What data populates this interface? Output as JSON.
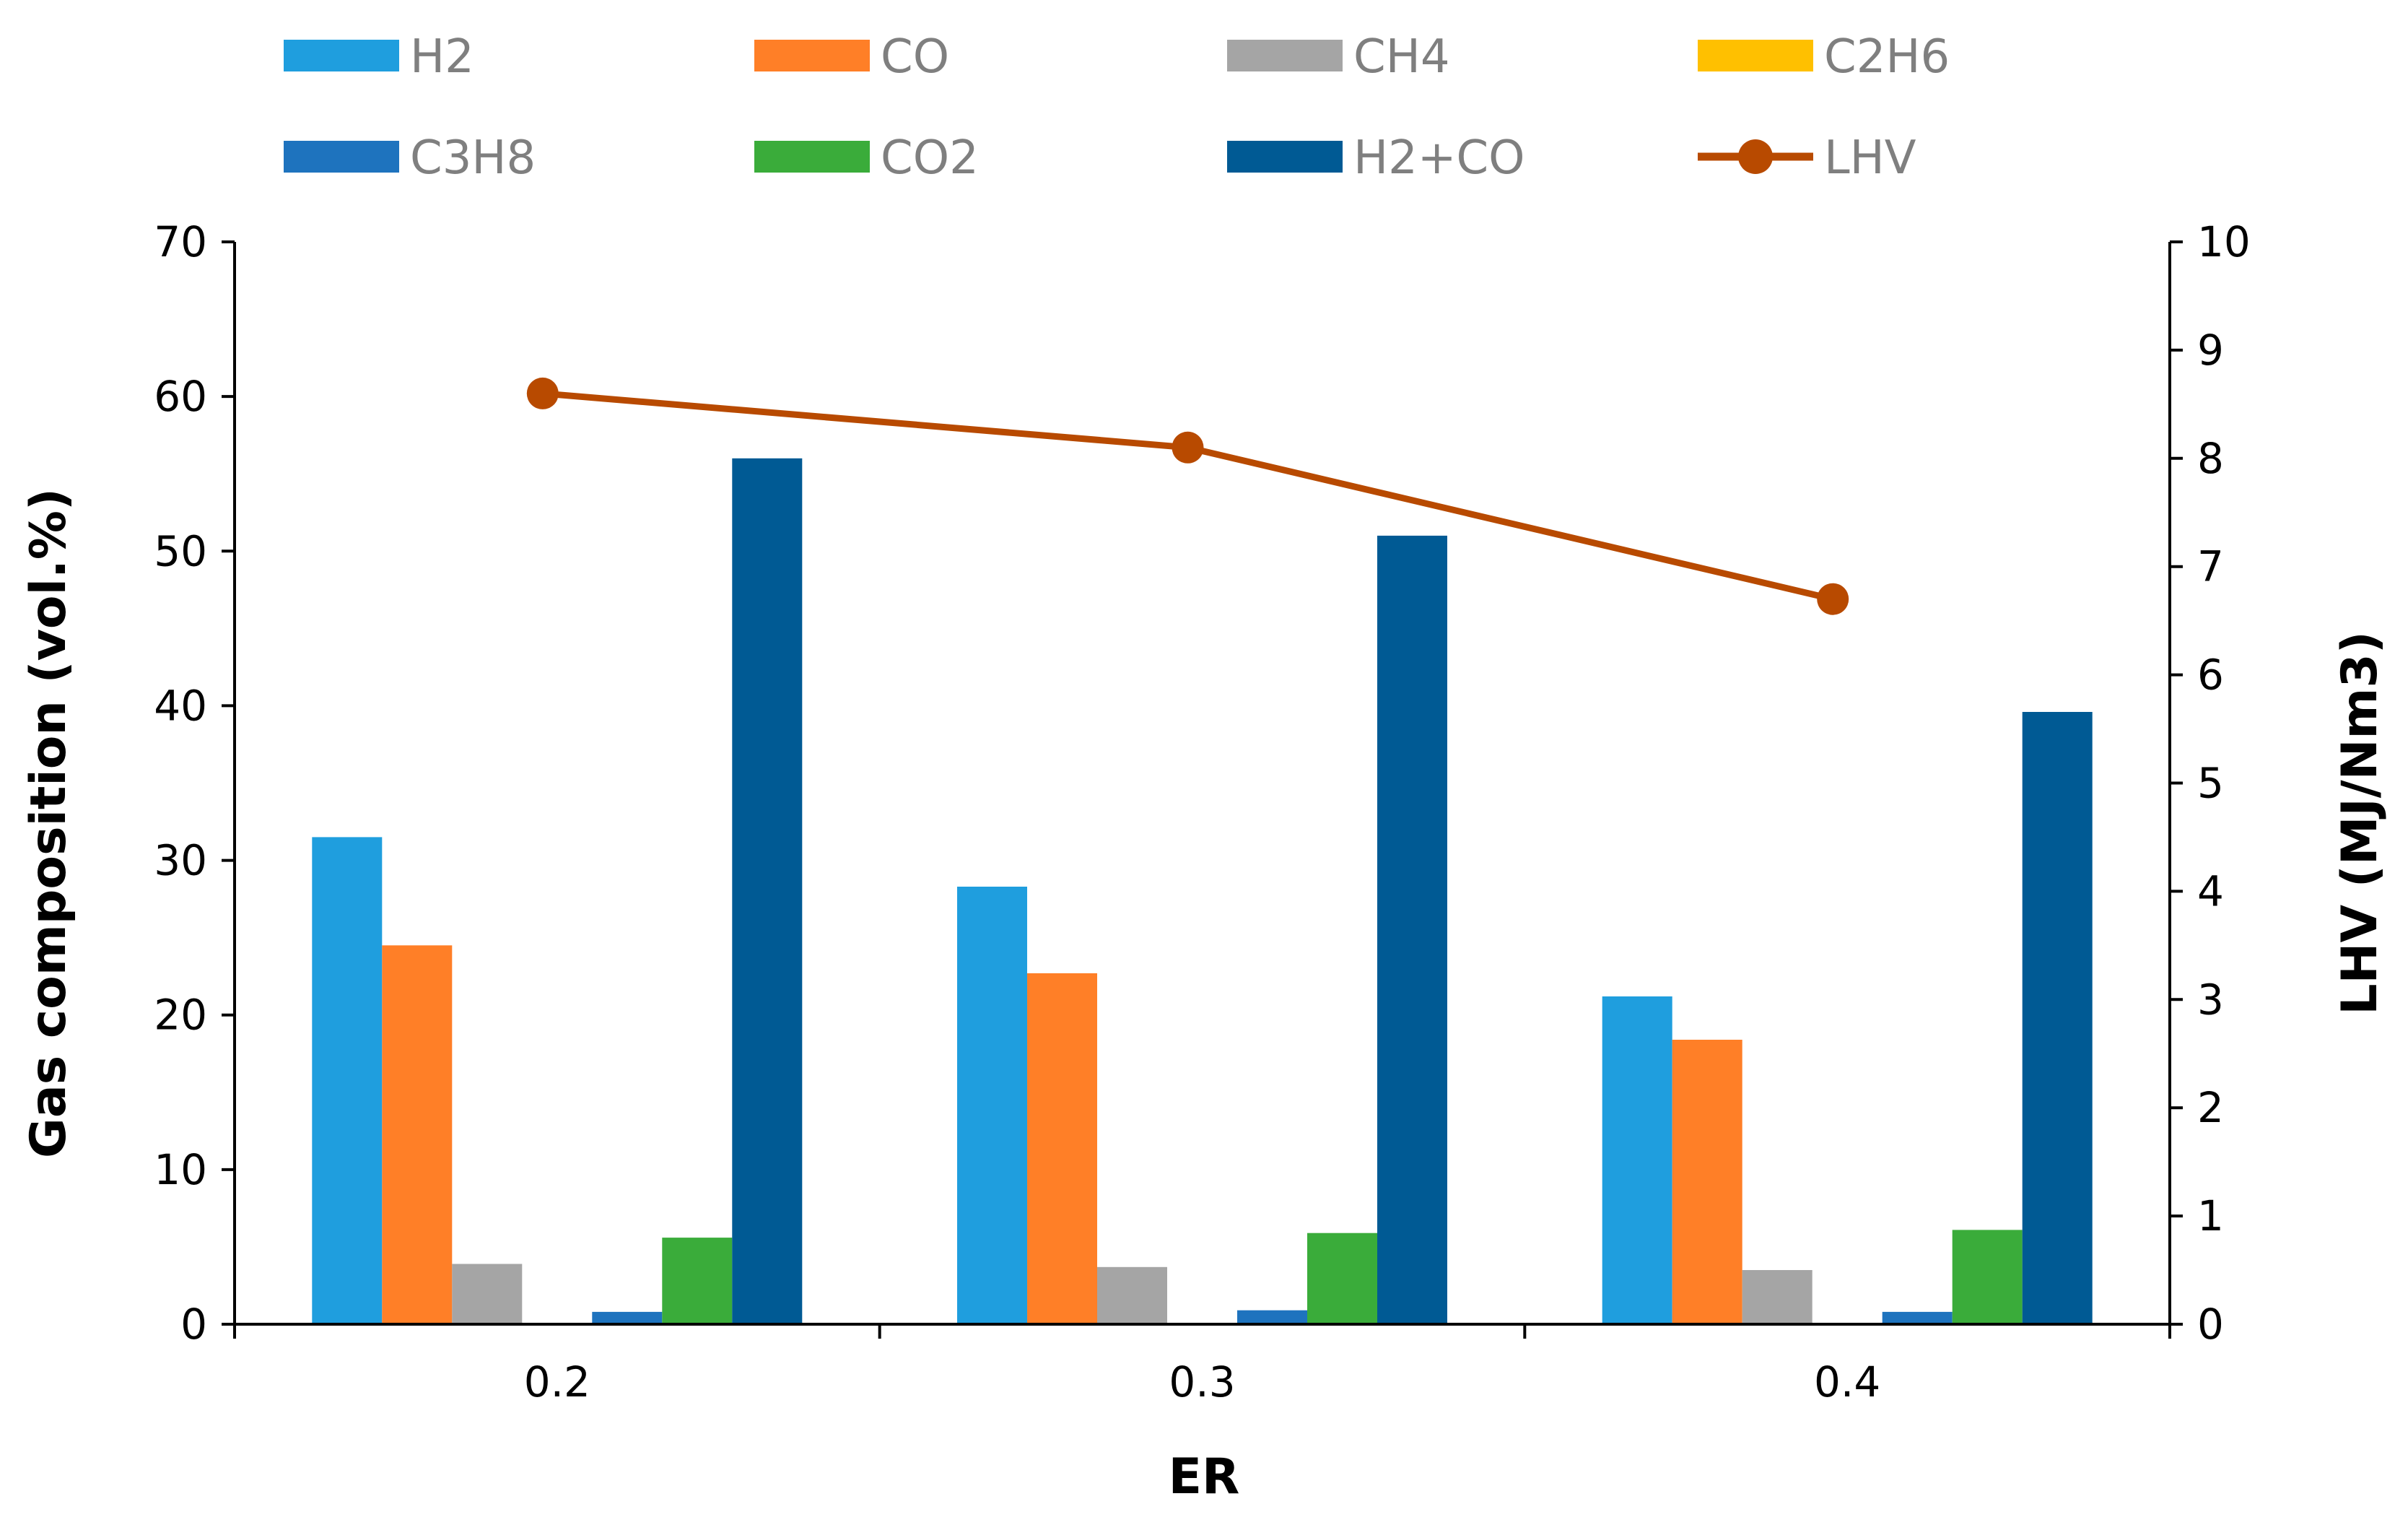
{
  "chart_data": {
    "type": "bar",
    "title": "",
    "xlabel": "ER",
    "ylabel": "Gas composition (vol.%)",
    "y2label": "LHV (MJ/Nm3)",
    "categories": [
      "0.2",
      "0.3",
      "0.4"
    ],
    "ylim": [
      0,
      70
    ],
    "y_ticks": [
      "0",
      "10",
      "20",
      "30",
      "40",
      "50",
      "60",
      "70"
    ],
    "y2lim": [
      0,
      10
    ],
    "y2_ticks": [
      "0",
      "1",
      "2",
      "3",
      "4",
      "5",
      "6",
      "7",
      "8",
      "9",
      "10"
    ],
    "legend_position": "top",
    "grid": false,
    "series": [
      {
        "name": "H2",
        "type": "bar",
        "color": "#1f9ede",
        "values": [
          31.5,
          28.3,
          21.2
        ]
      },
      {
        "name": "CO",
        "type": "bar",
        "color": "#ff7f27",
        "values": [
          24.5,
          22.7,
          18.4
        ]
      },
      {
        "name": "CH4",
        "type": "bar",
        "color": "#a5a5a5",
        "values": [
          3.9,
          3.7,
          3.5
        ]
      },
      {
        "name": "C2H6",
        "type": "bar",
        "color": "#ffc000",
        "values": [
          0,
          0,
          0
        ]
      },
      {
        "name": "C3H8",
        "type": "bar",
        "color": "#1e73be",
        "values": [
          0.8,
          0.9,
          0.8
        ]
      },
      {
        "name": "CO2",
        "type": "bar",
        "color": "#3aac3a",
        "values": [
          5.6,
          5.9,
          6.1
        ]
      },
      {
        "name": "H2+CO",
        "type": "bar",
        "color": "#005a94",
        "values": [
          56.0,
          51.0,
          39.6
        ]
      },
      {
        "name": "LHV",
        "type": "line",
        "axis": "right",
        "color": "#b84a00",
        "values": [
          8.6,
          8.1,
          6.7
        ]
      }
    ]
  }
}
